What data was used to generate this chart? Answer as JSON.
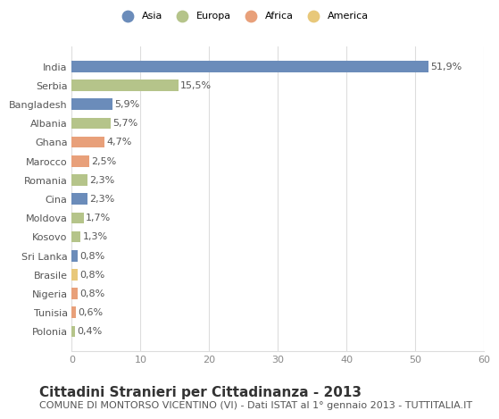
{
  "countries": [
    "India",
    "Serbia",
    "Bangladesh",
    "Albania",
    "Ghana",
    "Marocco",
    "Romania",
    "Cina",
    "Moldova",
    "Kosovo",
    "Sri Lanka",
    "Brasile",
    "Nigeria",
    "Tunisia",
    "Polonia"
  ],
  "values": [
    51.9,
    15.5,
    5.9,
    5.7,
    4.7,
    2.5,
    2.3,
    2.3,
    1.7,
    1.3,
    0.8,
    0.8,
    0.8,
    0.6,
    0.4
  ],
  "labels": [
    "51,9%",
    "15,5%",
    "5,9%",
    "5,7%",
    "4,7%",
    "2,5%",
    "2,3%",
    "2,3%",
    "1,7%",
    "1,3%",
    "0,8%",
    "0,8%",
    "0,8%",
    "0,6%",
    "0,4%"
  ],
  "colors": [
    "#6b8cba",
    "#b5c48a",
    "#6b8cba",
    "#b5c48a",
    "#e8a07a",
    "#e8a07a",
    "#b5c48a",
    "#6b8cba",
    "#b5c48a",
    "#b5c48a",
    "#6b8cba",
    "#e8c87a",
    "#e8a07a",
    "#e8a07a",
    "#b5c48a"
  ],
  "legend_labels": [
    "Asia",
    "Europa",
    "Africa",
    "America"
  ],
  "legend_colors": [
    "#6b8cba",
    "#b5c48a",
    "#e8a07a",
    "#e8c87a"
  ],
  "title": "Cittadini Stranieri per Cittadinanza - 2013",
  "subtitle": "COMUNE DI MONTORSO VICENTINO (VI) - Dati ISTAT al 1° gennaio 2013 - TUTTITALIA.IT",
  "xlim": [
    0,
    60
  ],
  "xticks": [
    0,
    10,
    20,
    30,
    40,
    50,
    60
  ],
  "background_color": "#ffffff",
  "grid_color": "#dddddd",
  "bar_height": 0.6,
  "title_fontsize": 11,
  "subtitle_fontsize": 8,
  "label_fontsize": 8,
  "tick_fontsize": 8
}
